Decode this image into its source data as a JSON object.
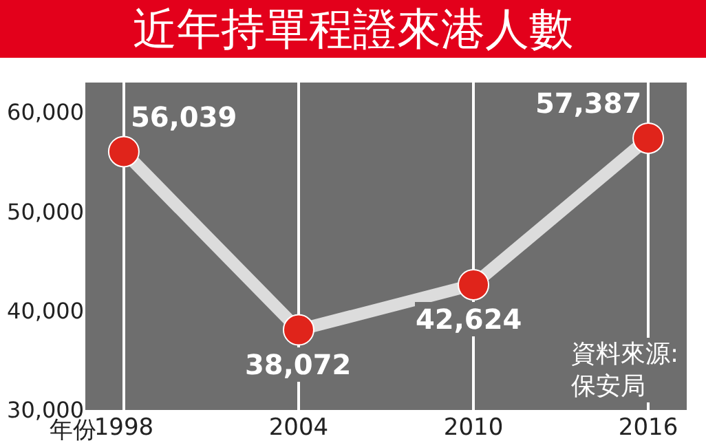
{
  "chart_data": {
    "type": "line",
    "title": "近年持單程證來港人數",
    "xlabel": "年份",
    "categories": [
      "1998",
      "2004",
      "2010",
      "2016"
    ],
    "series": [
      {
        "color": "#e0241b",
        "values": [
          56039,
          38072,
          42624,
          57387
        ]
      }
    ],
    "ylim": [
      30000,
      63000
    ],
    "yticks": [
      {
        "value": 30000,
        "label": "30,000"
      },
      {
        "value": 40000,
        "label": "40,000"
      },
      {
        "value": 50000,
        "label": "50,000"
      },
      {
        "value": 60000,
        "label": "60,000"
      }
    ],
    "value_labels": [
      "56,039",
      "38,072",
      "42,624",
      "57,387"
    ],
    "annotations": [
      "資料來源:\n保安局"
    ],
    "grid": "x",
    "marker": "circle",
    "line_style": "solid",
    "legend": false
  }
}
